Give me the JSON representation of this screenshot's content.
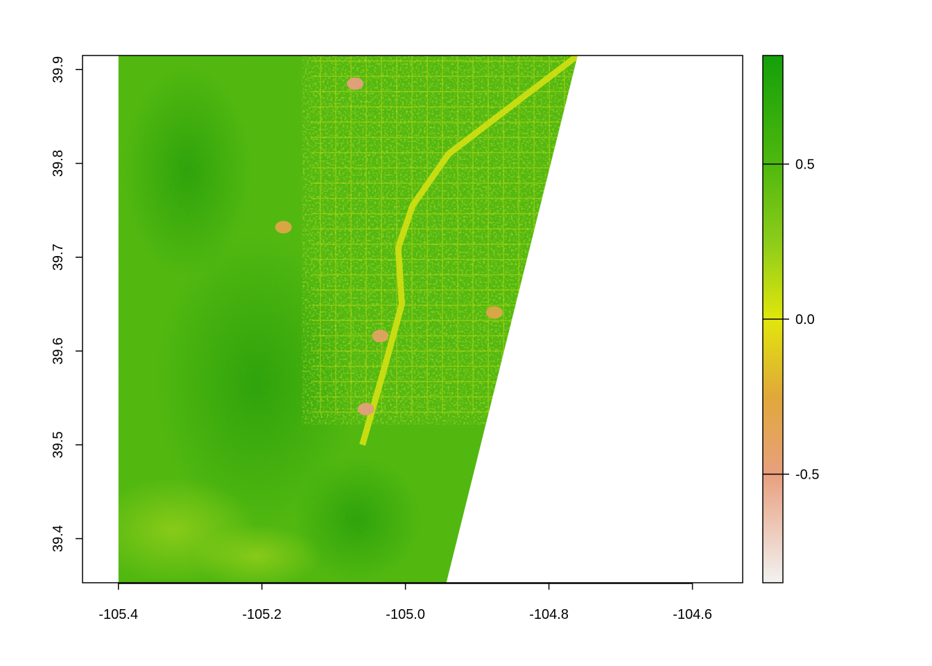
{
  "chart_data": {
    "type": "heatmap",
    "title": "",
    "xlabel": "",
    "ylabel": "",
    "xlim": [
      -105.45,
      -104.53
    ],
    "ylim": [
      39.353,
      39.915
    ],
    "x_ticks": [
      -105.4,
      -105.2,
      -105.0,
      -104.8,
      -104.6
    ],
    "x_tick_labels": [
      "-105.4",
      "-105.2",
      "-105.0",
      "-104.8",
      "-104.6"
    ],
    "y_ticks": [
      39.4,
      39.5,
      39.6,
      39.7,
      39.8,
      39.9
    ],
    "y_tick_labels": [
      "39.4",
      "39.5",
      "39.6",
      "39.7",
      "39.8",
      "39.9"
    ],
    "raster_extent": {
      "west": -105.4,
      "top_right_lon": -104.76,
      "bottom_right_lon": -104.943,
      "north": 39.915,
      "south": 39.353
    },
    "legend": {
      "placement": "right",
      "range": [
        -0.85,
        0.85
      ],
      "ticks": [
        -0.5,
        0.0,
        0.5
      ],
      "tick_labels": [
        "-0.5",
        "0.0",
        "0.5"
      ],
      "color_stops": [
        {
          "value": -0.85,
          "color": "#f2f2f2"
        },
        {
          "value": -0.5,
          "color": "#e8a07e"
        },
        {
          "value": -0.25,
          "color": "#e0a83a"
        },
        {
          "value": 0.0,
          "color": "#e1e60c"
        },
        {
          "value": 0.25,
          "color": "#8ccc1a"
        },
        {
          "value": 0.5,
          "color": "#4fb80e"
        },
        {
          "value": 0.85,
          "color": "#14a00a"
        }
      ]
    },
    "features": {
      "water_bodies": [
        {
          "lon": -105.07,
          "lat": 39.885,
          "value": -0.5
        },
        {
          "lon": -105.055,
          "lat": 39.538,
          "value": -0.5
        },
        {
          "lon": -105.035,
          "lat": 39.616,
          "value": -0.4
        },
        {
          "lon": -104.876,
          "lat": 39.641,
          "value": -0.3
        },
        {
          "lon": -105.17,
          "lat": 39.732,
          "value": -0.3
        }
      ],
      "river": [
        {
          "lon": -104.76,
          "lat": 39.915
        },
        {
          "lon": -104.94,
          "lat": 39.81
        },
        {
          "lon": -104.99,
          "lat": 39.755
        },
        {
          "lon": -105.01,
          "lat": 39.71
        },
        {
          "lon": -105.005,
          "lat": 39.65
        },
        {
          "lon": -105.03,
          "lat": 39.58
        },
        {
          "lon": -105.06,
          "lat": 39.5
        }
      ]
    }
  }
}
